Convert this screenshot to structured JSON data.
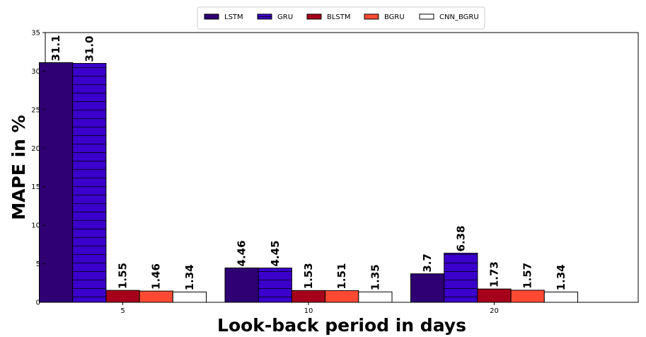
{
  "chart_data": {
    "type": "bar",
    "xlabel": "Look-back period in days",
    "ylabel": "MAPE in %",
    "categories": [
      "5",
      "10",
      "20"
    ],
    "ylim": [
      0,
      35
    ],
    "yticks": [
      0,
      5,
      10,
      15,
      20,
      25,
      30,
      35
    ],
    "legend_position": "top-center",
    "series": [
      {
        "name": "LSTM",
        "color": "#2e0073",
        "hatch": false,
        "values": [
          31.1,
          4.46,
          3.7
        ],
        "labels": [
          "31.1",
          "4.46",
          "3.7"
        ]
      },
      {
        "name": "GRU",
        "color": "#3b00cc",
        "hatch": true,
        "values": [
          31.0,
          4.45,
          6.38
        ],
        "labels": [
          "31.0",
          "4.45",
          "6.38"
        ]
      },
      {
        "name": "BLSTM",
        "color": "#a6001a",
        "hatch": false,
        "values": [
          1.55,
          1.53,
          1.73
        ],
        "labels": [
          "1.55",
          "1.53",
          "1.73"
        ]
      },
      {
        "name": "BGRU",
        "color": "#ff4a33",
        "hatch": false,
        "values": [
          1.46,
          1.51,
          1.57
        ],
        "labels": [
          "1.46",
          "1.51",
          "1.57"
        ]
      },
      {
        "name": "CNN_BGRU",
        "color": "#ffffff",
        "hatch": false,
        "values": [
          1.34,
          1.35,
          1.34
        ],
        "labels": [
          "1.34",
          "1.35",
          "1.34"
        ]
      }
    ]
  }
}
